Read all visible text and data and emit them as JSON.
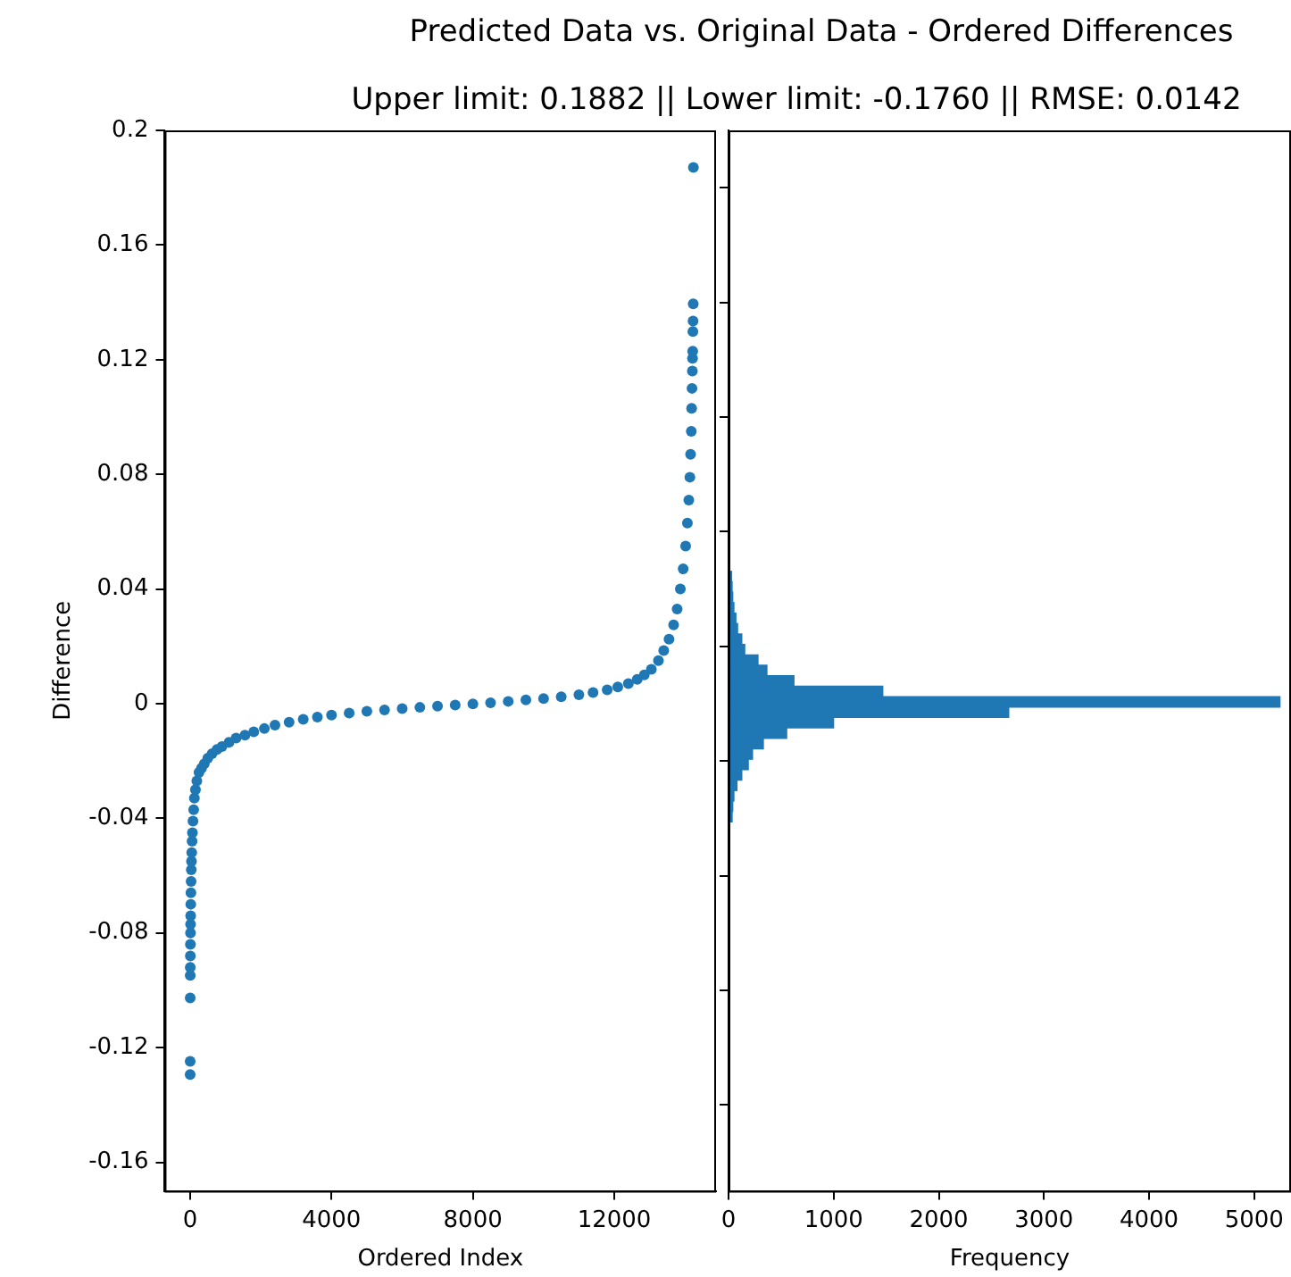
{
  "chart_data": [
    {
      "type": "scatter",
      "title": "Predicted Data vs. Original Data - Ordered Differences",
      "subtitle": "Upper limit: 0.1882 || Lower limit: -0.1760 || RMSE: 0.0142",
      "xlabel": "Ordered Index",
      "ylabel": "Difference",
      "color": "#1f77b4",
      "marker": "circle",
      "x": [
        0,
        1,
        2,
        3,
        4,
        6,
        8,
        10,
        12,
        15,
        18,
        22,
        27,
        32,
        38,
        45,
        55,
        65,
        80,
        100,
        120,
        150,
        190,
        250,
        320,
        400,
        500,
        620,
        760,
        900,
        1100,
        1300,
        1550,
        1800,
        2100,
        2400,
        2800,
        3200,
        3600,
        4000,
        4500,
        5000,
        5500,
        6000,
        6500,
        7000,
        7500,
        8000,
        8500,
        9000,
        9500,
        10000,
        10500,
        11000,
        11400,
        11800,
        12100,
        12400,
        12650,
        12850,
        13050,
        13250,
        13400,
        13550,
        13680,
        13780,
        13870,
        13950,
        14020,
        14070,
        14110,
        14140,
        14160,
        14180,
        14190,
        14200,
        14210,
        14215,
        14220,
        14225,
        14230,
        14235,
        14240
      ],
      "values": [
        -0.1294,
        -0.1248,
        -0.1027,
        -0.0948,
        -0.092,
        -0.088,
        -0.084,
        -0.08,
        -0.077,
        -0.074,
        -0.07,
        -0.066,
        -0.062,
        -0.058,
        -0.055,
        -0.052,
        -0.048,
        -0.045,
        -0.041,
        -0.037,
        -0.033,
        -0.03,
        -0.027,
        -0.024,
        -0.0225,
        -0.021,
        -0.019,
        -0.0175,
        -0.016,
        -0.015,
        -0.0135,
        -0.012,
        -0.011,
        -0.0098,
        -0.0087,
        -0.0075,
        -0.0065,
        -0.0055,
        -0.0047,
        -0.004,
        -0.0033,
        -0.0027,
        -0.0022,
        -0.0017,
        -0.0013,
        -0.0009,
        -0.0005,
        -0.0001,
        0.0003,
        0.0008,
        0.0013,
        0.0018,
        0.0024,
        0.0031,
        0.0039,
        0.0048,
        0.0058,
        0.007,
        0.0085,
        0.01,
        0.012,
        0.015,
        0.0185,
        0.0225,
        0.0275,
        0.033,
        0.04,
        0.047,
        0.055,
        0.063,
        0.071,
        0.079,
        0.087,
        0.095,
        0.103,
        0.11,
        0.116,
        0.1205,
        0.123,
        0.1298,
        0.1335,
        0.1395,
        0.1871
      ],
      "xlim": [
        -720,
        14880
      ],
      "xticks": [
        0,
        4000,
        8000,
        12000
      ],
      "ylim": [
        -0.17,
        0.2
      ],
      "yticks": [
        -0.16,
        -0.12,
        -0.08,
        -0.04,
        0.0,
        0.04,
        0.08,
        0.12,
        0.16,
        0.2
      ]
    },
    {
      "type": "histogram",
      "orientation": "horizontal",
      "xlabel": "Frequency",
      "color": "#1f77b4",
      "tick_labels": "x",
      "bins": [
        -0.06674,
        -0.0631,
        -0.05946,
        -0.05582,
        -0.05217,
        -0.04853,
        -0.04489,
        -0.04125,
        -0.0376,
        -0.03396,
        -0.03032,
        -0.02668,
        -0.02304,
        -0.01939,
        -0.01575,
        -0.01211,
        -0.00847,
        -0.00483,
        -0.00118,
        0.00246,
        0.0061,
        0.00974,
        0.01338,
        0.01703,
        0.02067,
        0.02431,
        0.02795,
        0.0316,
        0.03524,
        0.03888,
        0.04252,
        0.04616,
        0.04981,
        0.05345,
        0.05709,
        0.06073,
        0.06438
      ],
      "values": [
        5,
        5,
        5,
        8,
        10,
        null,
        null,
        34,
        40,
        51,
        80,
        126,
        188,
        228,
        331,
        553,
        999,
        2665,
        5245,
        1467,
        622,
        365,
        280,
        154,
        126,
        86,
        70,
        51,
        40,
        34,
        29,
        null,
        null,
        11,
        null,
        null
      ],
      "xlim": [
        0,
        5350
      ],
      "xticks": [
        0,
        1000,
        2000,
        3000,
        4000,
        5000
      ],
      "ylim": [
        -0.17,
        0.2
      ],
      "yticks": [
        -0.16,
        -0.12,
        -0.08,
        -0.04,
        0.0,
        0.04,
        0.08,
        0.12,
        0.16,
        0.2
      ]
    }
  ]
}
